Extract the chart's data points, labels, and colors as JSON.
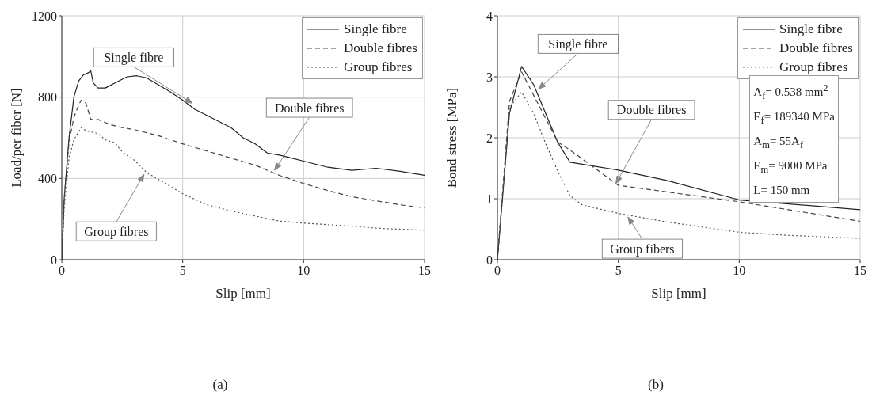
{
  "chart_data": [
    {
      "type": "line",
      "xlabel": "Slip [mm]",
      "ylabel": "Load/per fiber [N]",
      "xlim": [
        0,
        15
      ],
      "ylim": [
        0,
        1200
      ],
      "xticks": [
        0,
        5,
        10,
        15
      ],
      "yticks": [
        0,
        400,
        800,
        1200
      ],
      "grid": true,
      "legend": "top right",
      "marker": "none",
      "series": [
        {
          "name": "Single fibre",
          "color": "#222222",
          "line_style": "solid",
          "x": [
            0,
            0.1,
            0.3,
            0.5,
            0.7,
            0.9,
            1.1,
            1.2,
            1.3,
            1.5,
            1.8,
            2.2,
            2.7,
            3.1,
            3.5,
            4,
            4.5,
            5,
            5.5,
            6,
            6.5,
            7,
            7.5,
            8,
            8.5,
            9,
            9.5,
            10,
            11,
            12,
            13,
            14,
            15
          ],
          "values": [
            0,
            300,
            600,
            800,
            880,
            910,
            920,
            930,
            870,
            845,
            845,
            870,
            900,
            905,
            895,
            860,
            825,
            785,
            740,
            710,
            680,
            650,
            600,
            570,
            525,
            515,
            500,
            485,
            455,
            440,
            450,
            435,
            415
          ]
        },
        {
          "name": "Double fibres",
          "color": "#444444",
          "line_style": "dashed",
          "x": [
            0,
            0.1,
            0.3,
            0.5,
            0.7,
            0.8,
            1,
            1.2,
            1.5,
            2,
            2.5,
            3,
            4,
            5,
            6,
            7,
            8,
            9,
            10,
            11,
            12,
            13,
            14,
            15
          ],
          "values": [
            0,
            300,
            580,
            700,
            760,
            785,
            770,
            690,
            690,
            665,
            650,
            640,
            610,
            570,
            535,
            500,
            465,
            415,
            375,
            340,
            310,
            290,
            270,
            255
          ]
        },
        {
          "name": "Group fibres",
          "color": "#555555",
          "line_style": "dotted",
          "x": [
            0,
            0.1,
            0.3,
            0.5,
            0.7,
            0.8,
            1,
            1.5,
            1.8,
            2.2,
            2.5,
            3,
            3.5,
            4,
            5,
            6,
            7,
            8,
            9,
            10,
            12,
            13,
            15
          ],
          "values": [
            0,
            250,
            500,
            590,
            630,
            650,
            635,
            620,
            590,
            575,
            530,
            490,
            430,
            395,
            325,
            270,
            240,
            215,
            190,
            180,
            165,
            155,
            145
          ]
        }
      ],
      "annotations": [
        {
          "text": "Single fibre",
          "x": 5.4,
          "y": 770
        },
        {
          "text": "Double fibres",
          "x": 8.8,
          "y": 440
        },
        {
          "text": "Group fibres",
          "x": 3.4,
          "y": 420
        },
        "(a)"
      ]
    },
    {
      "type": "line",
      "xlabel": "Slip [mm]",
      "ylabel": "Bond stress [MPa]",
      "xlim": [
        0,
        15
      ],
      "ylim": [
        0,
        4
      ],
      "xticks": [
        0,
        5,
        10,
        15
      ],
      "yticks": [
        0,
        1,
        2,
        3,
        4
      ],
      "grid": true,
      "legend": "top right",
      "marker": "none",
      "series": [
        {
          "name": "Single fibre",
          "color": "#222222",
          "line_style": "solid",
          "x": [
            0,
            0.5,
            1,
            1.5,
            2.5,
            3,
            5,
            7,
            10,
            15
          ],
          "values": [
            0,
            2.4,
            3.17,
            2.87,
            1.92,
            1.6,
            1.47,
            1.3,
            0.98,
            0.82
          ]
        },
        {
          "name": "Double fibres",
          "color": "#444444",
          "line_style": "dashed",
          "x": [
            0,
            0.5,
            1,
            2.5,
            3,
            5,
            10,
            15
          ],
          "values": [
            0,
            2.6,
            3.08,
            1.93,
            1.8,
            1.22,
            0.95,
            0.63
          ]
        },
        {
          "name": "Group fibres",
          "color": "#555555",
          "line_style": "dotted",
          "x": [
            0,
            0.5,
            1,
            1.5,
            2,
            2.5,
            3,
            3.5,
            5,
            7,
            10,
            12,
            15
          ],
          "values": [
            0,
            2.5,
            2.75,
            2.4,
            1.9,
            1.45,
            1.05,
            0.9,
            0.76,
            0.62,
            0.45,
            0.4,
            0.35
          ]
        }
      ],
      "annotations": [
        {
          "text": "Single fibre",
          "x": 1.7,
          "y": 2.8
        },
        {
          "text": "Double fibres",
          "x": 4.9,
          "y": 1.25
        },
        {
          "text": "Group fibers",
          "x": 5.4,
          "y": 0.7
        },
        "A$_{f}$= 0.538 mm$^{2}$",
        "E$_{f}$= 189340 MPa",
        "A$_{m}$= 55A$_{f}$",
        "E$_{m}$= 9000 MPa",
        "L= 150 mm",
        "(b)"
      ]
    }
  ]
}
